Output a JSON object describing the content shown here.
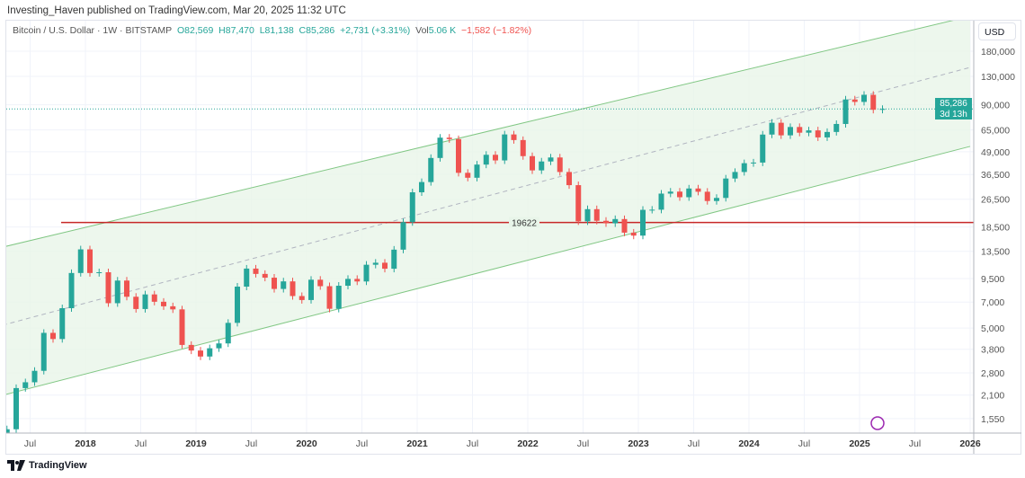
{
  "header": {
    "published": "Investing_Haven published on TradingView.com, Mar 20, 2025 11:32 UTC"
  },
  "legend": {
    "symbol": "Bitcoin / U.S. Dollar · 1W · BITSTAMP",
    "open": "O82,569",
    "high": "H87,470",
    "low": "L81,138",
    "close": "C85,286",
    "change": "+2,731 (+3.31%)",
    "vol_label": "Vol",
    "vol": "5.06 K",
    "vol_change": "−1,582 (−1.82%)"
  },
  "currency_button": "USD",
  "price_badge": {
    "price": "85,286",
    "countdown": "3d 13h"
  },
  "footer": {
    "brand": "TradingView"
  },
  "colors": {
    "up": "#26a69a",
    "down": "#ef5350",
    "channel": "#81c784",
    "channel_fill": "#e8f5e9",
    "level": "#c62828"
  },
  "chart_data": {
    "type": "candlestick",
    "scale": "log",
    "y_ticks": [
      180000,
      130000,
      90000,
      65000,
      49000,
      36500,
      26500,
      18500,
      13500,
      9500,
      7000,
      5000,
      3800,
      2800,
      2100,
      1550
    ],
    "y_tick_labels": [
      "180,000",
      "130,000",
      "90,000",
      "65,000",
      "49,000",
      "36,500",
      "26,500",
      "18,500",
      "13,500",
      "9,500",
      "7,000",
      "5,000",
      "3,800",
      "2,800",
      "2,100",
      "1,550"
    ],
    "x_ticks": [
      {
        "label": "Jul",
        "date": "2017-07"
      },
      {
        "label": "2018",
        "date": "2018-01"
      },
      {
        "label": "Jul",
        "date": "2018-07"
      },
      {
        "label": "2019",
        "date": "2019-01"
      },
      {
        "label": "Jul",
        "date": "2019-07"
      },
      {
        "label": "2020",
        "date": "2020-01"
      },
      {
        "label": "Jul",
        "date": "2020-07"
      },
      {
        "label": "2021",
        "date": "2021-01"
      },
      {
        "label": "Jul",
        "date": "2021-07"
      },
      {
        "label": "2022",
        "date": "2022-01"
      },
      {
        "label": "Jul",
        "date": "2022-07"
      },
      {
        "label": "2023",
        "date": "2023-01"
      },
      {
        "label": "Jul",
        "date": "2023-07"
      },
      {
        "label": "2024",
        "date": "2024-01"
      },
      {
        "label": "Jul",
        "date": "2024-07"
      },
      {
        "label": "2025",
        "date": "2025-01"
      },
      {
        "label": "Jul",
        "date": "2025-07"
      },
      {
        "label": "2026",
        "date": "2026-01"
      }
    ],
    "start": "2017-04",
    "monthly_close": [
      1350,
      2300,
      2480,
      2875,
      4700,
      4340,
      6470,
      10200,
      13850,
      10200,
      10300,
      6900,
      9250,
      7500,
      6400,
      7730,
      7030,
      6630,
      6370,
      4020,
      3740,
      3460,
      3850,
      4100,
      5350,
      8550,
      10800,
      10080,
      9600,
      8300,
      9150,
      7570,
      7190,
      9350,
      8600,
      6420,
      8650,
      9450,
      9140,
      11350,
      11650,
      10780,
      13800,
      19700,
      28990,
      33100,
      45200,
      58800,
      57700,
      37300,
      35000,
      41500,
      47100,
      43800,
      61300,
      57000,
      46300,
      38500,
      43200,
      45500,
      37700,
      31800,
      19900,
      23300,
      20050,
      19400,
      20500,
      17200,
      16550,
      23100,
      23150,
      28500,
      29250,
      27200,
      30450,
      29200,
      25900,
      26950,
      34650,
      37700,
      42250,
      42600,
      61200,
      71300,
      60600,
      67500,
      62700,
      64600,
      59000,
      63300,
      70200,
      96400,
      93400,
      102400,
      84350,
      85286
    ],
    "first_open": 1080,
    "channel": {
      "upper": [
        [
          "2017-04",
          14250
        ],
        [
          "2026-01",
          283000
        ]
      ],
      "middle": [
        [
          "2017-04",
          5190
        ],
        [
          "2026-01",
          146000
        ]
      ],
      "lower": [
        [
          "2017-04",
          2094
        ],
        [
          "2026-01",
          52500
        ]
      ]
    },
    "horizontal_level": {
      "value": 19622,
      "label": "19622"
    },
    "last_price": 85286
  }
}
